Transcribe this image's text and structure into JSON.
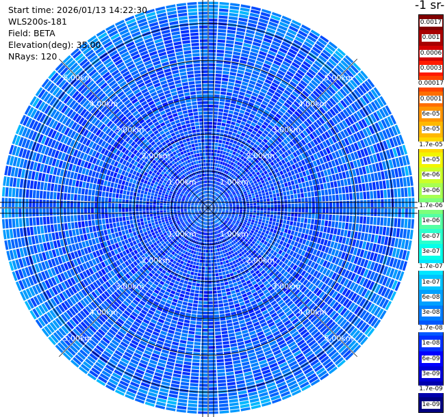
{
  "info": {
    "start_time": "Start time: 2026/01/13 14:22:30",
    "instrument": "WLS200s-181",
    "field": "Field: BETA",
    "elevation": "Elevation(deg): 35.00",
    "nrays": "NRays: 120"
  },
  "colorbar": {
    "title": "-1 sr-",
    "levels": [
      "0.0017",
      "0.001",
      "0.0006",
      "0.0003",
      "0.00017",
      "0.0001",
      "6e-05",
      "3e-05",
      "1.7e-05",
      "1e-05",
      "6e-06",
      "3e-06",
      "1.7e-06",
      "1e-06",
      "6e-07",
      "3e-07",
      "1.7e-07",
      "1e-07",
      "6e-08",
      "3e-08",
      "1.7e-08",
      "1e-08",
      "6e-09",
      "3e-09",
      "1.7e-09",
      "1e-09"
    ],
    "colors": [
      "#800000",
      "#a80000",
      "#d40000",
      "#ff1a00",
      "#ff4400",
      "#ff6e00",
      "#ff9500",
      "#ffb800",
      "#ffd800",
      "#f2f500",
      "#cbff29",
      "#a6ff52",
      "#7dff7a",
      "#54ffa3",
      "#2bffcc",
      "#04ffe9",
      "#00e6ff",
      "#00c3ff",
      "#00a0ff",
      "#007dff",
      "#0058ff",
      "#0030ff",
      "#0000ff",
      "#0000d6",
      "#0000ad",
      "#000080"
    ]
  },
  "chart_data": {
    "type": "heatmap",
    "projection": "polar (PPI scan)",
    "field": "BETA",
    "n_rays": 120,
    "range_rings_km": [
      1,
      2,
      3,
      4,
      5
    ],
    "ring_labels": [
      "1.00km",
      "2.00km",
      "3.00km",
      "4.00km",
      "5.00km"
    ],
    "max_range_km": 5.6,
    "color_scale": "log",
    "value_range": [
      1e-09,
      0.0017
    ],
    "typical_values": "mostly 1e-08 to 6e-08 (blue), higher near outer edge (~1e-07, cyan)"
  }
}
